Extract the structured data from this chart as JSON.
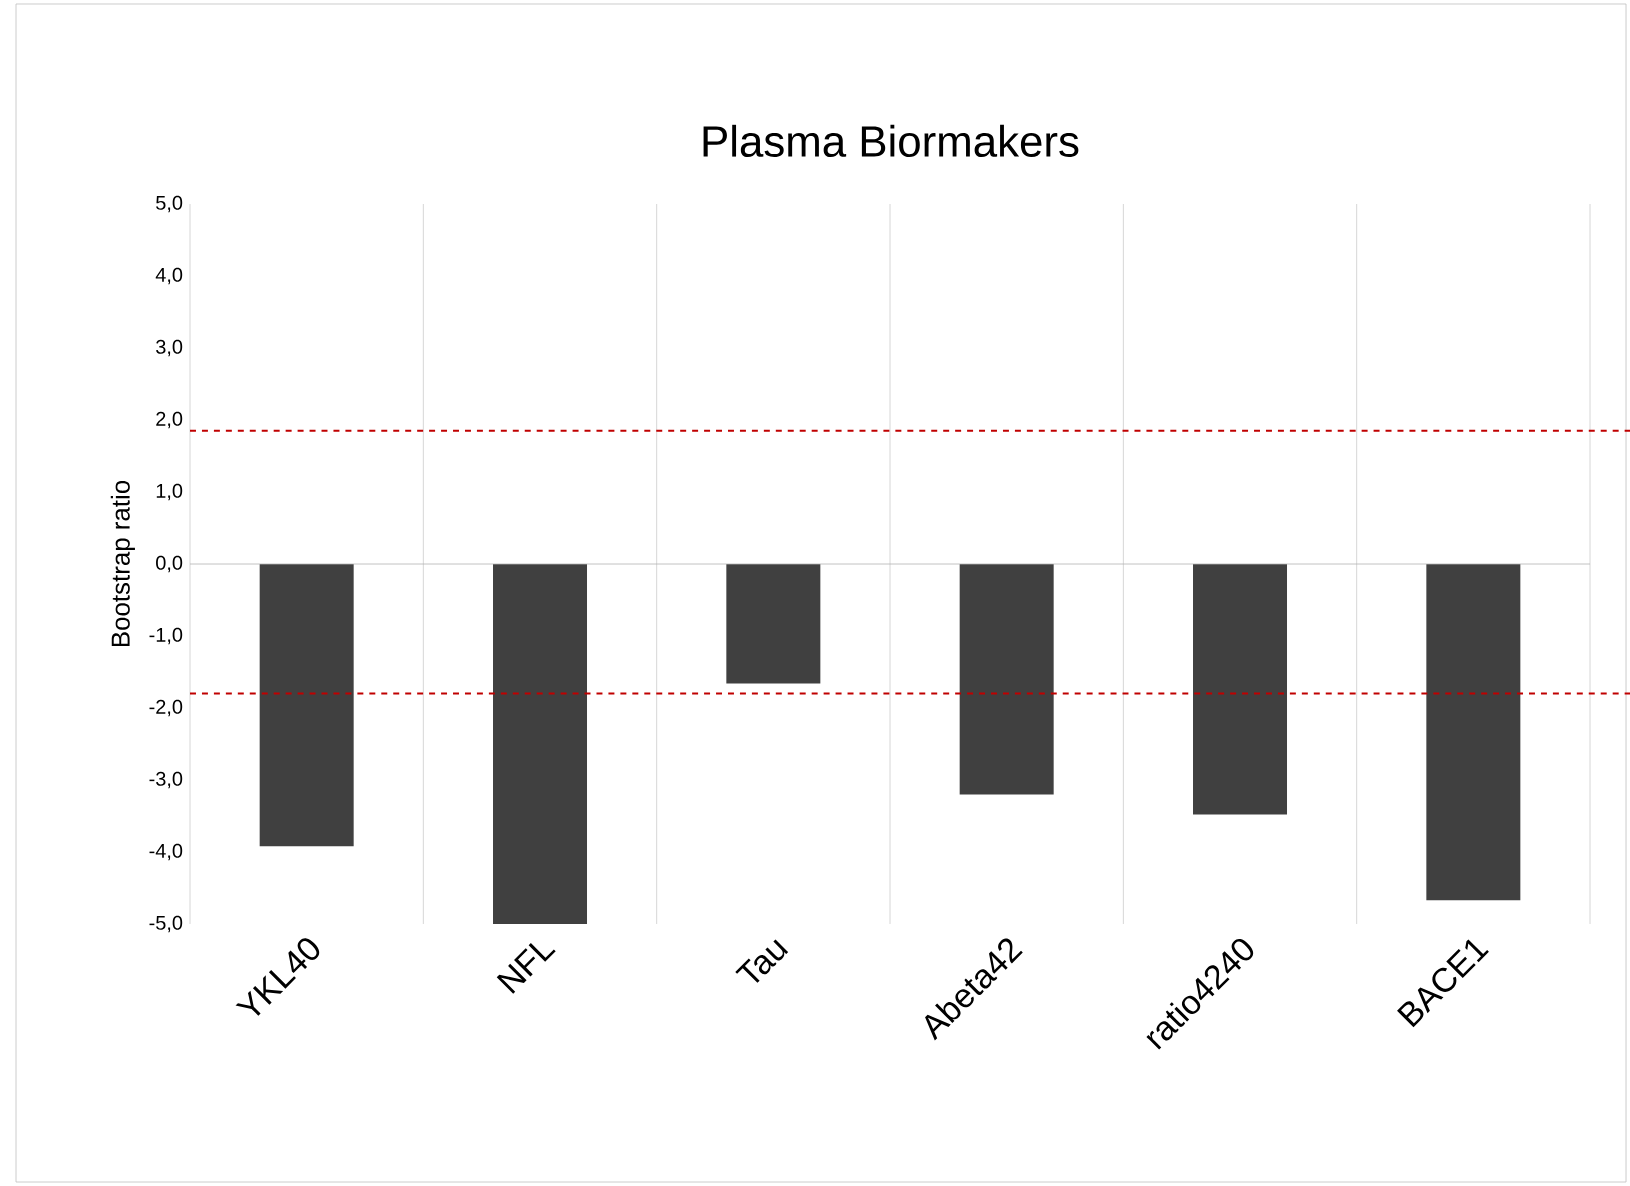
{
  "chart_data": {
    "type": "bar",
    "title": "Plasma Biormakers",
    "ylabel": "Bootstrap ratio",
    "categories": [
      "YKL40",
      "NFL",
      "Tau",
      "Abeta42",
      "ratio4240",
      "BACE1"
    ],
    "values": [
      -3.92,
      -5.0,
      -1.66,
      -3.2,
      -3.48,
      -4.67
    ],
    "color": "#404040",
    "ylim": [
      -5,
      5
    ],
    "yticks": [
      {
        "value": -5,
        "label": "-5,0"
      },
      {
        "value": -4,
        "label": "-4,0"
      },
      {
        "value": -3,
        "label": "-3,0"
      },
      {
        "value": -2,
        "label": "-2,0"
      },
      {
        "value": -1,
        "label": "-1,0"
      },
      {
        "value": 0,
        "label": "0,0"
      },
      {
        "value": 1,
        "label": "1,0"
      },
      {
        "value": 2,
        "label": "2,0"
      },
      {
        "value": 3,
        "label": "3,0"
      },
      {
        "value": 4,
        "label": "4,0"
      },
      {
        "value": 5,
        "label": "5,0"
      }
    ],
    "ref_lines": [
      {
        "axis": "y",
        "value": 1.85,
        "color": "#c00000",
        "line_style": "dashed"
      },
      {
        "axis": "y",
        "value": -1.8,
        "color": "#c00000",
        "line_style": "dashed"
      }
    ],
    "grid": "x"
  }
}
